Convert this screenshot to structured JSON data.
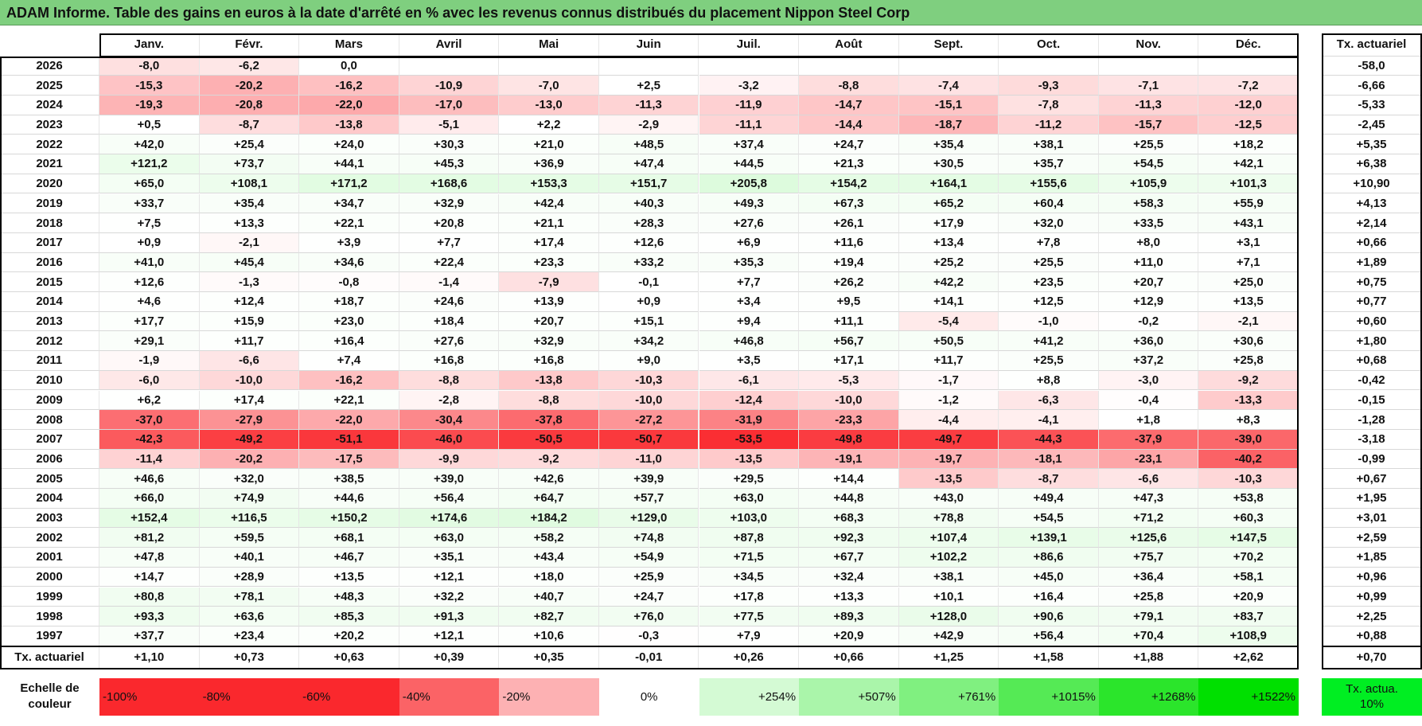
{
  "header": {
    "title": "ADAM Informe. Table des gains en euros à la date d'arrêté en % avec les revenus connus distribués du placement Nippon Steel Corp"
  },
  "table": {
    "columns": [
      "Janv.",
      "Févr.",
      "Mars",
      "Avril",
      "Mai",
      "Juin",
      "Juil.",
      "Août",
      "Sept.",
      "Oct.",
      "Nov.",
      "Déc."
    ],
    "tx_header": "Tx. actuariel",
    "rows": [
      {
        "year": "2026",
        "values": [
          "-8,0",
          "-6,2",
          "0,0"
        ],
        "tx": "-58,0"
      },
      {
        "year": "2025",
        "values": [
          "-15,3",
          "-20,2",
          "-16,2",
          "-10,9",
          "-7,0",
          "+2,5",
          "-3,2",
          "-8,8",
          "-7,4",
          "-9,3",
          "-7,1",
          "-7,2"
        ],
        "tx": "-6,66"
      },
      {
        "year": "2024",
        "values": [
          "-19,3",
          "-20,8",
          "-22,0",
          "-17,0",
          "-13,0",
          "-11,3",
          "-11,9",
          "-14,7",
          "-15,1",
          "-7,8",
          "-11,3",
          "-12,0"
        ],
        "tx": "-5,33"
      },
      {
        "year": "2023",
        "values": [
          "+0,5",
          "-8,7",
          "-13,8",
          "-5,1",
          "+2,2",
          "-2,9",
          "-11,1",
          "-14,4",
          "-18,7",
          "-11,2",
          "-15,7",
          "-12,5"
        ],
        "tx": "-2,45"
      },
      {
        "year": "2022",
        "values": [
          "+42,0",
          "+25,4",
          "+24,0",
          "+30,3",
          "+21,0",
          "+48,5",
          "+37,4",
          "+24,7",
          "+35,4",
          "+38,1",
          "+25,5",
          "+18,2"
        ],
        "tx": "+5,35"
      },
      {
        "year": "2021",
        "values": [
          "+121,2",
          "+73,7",
          "+44,1",
          "+45,3",
          "+36,9",
          "+47,4",
          "+44,5",
          "+21,3",
          "+30,5",
          "+35,7",
          "+54,5",
          "+42,1"
        ],
        "tx": "+6,38"
      },
      {
        "year": "2020",
        "values": [
          "+65,0",
          "+108,1",
          "+171,2",
          "+168,6",
          "+153,3",
          "+151,7",
          "+205,8",
          "+154,2",
          "+164,1",
          "+155,6",
          "+105,9",
          "+101,3"
        ],
        "tx": "+10,90"
      },
      {
        "year": "2019",
        "values": [
          "+33,7",
          "+35,4",
          "+34,7",
          "+32,9",
          "+42,4",
          "+40,3",
          "+49,3",
          "+67,3",
          "+65,2",
          "+60,4",
          "+58,3",
          "+55,9"
        ],
        "tx": "+4,13"
      },
      {
        "year": "2018",
        "values": [
          "+7,5",
          "+13,3",
          "+22,1",
          "+20,8",
          "+21,1",
          "+28,3",
          "+27,6",
          "+26,1",
          "+17,9",
          "+32,0",
          "+33,5",
          "+43,1"
        ],
        "tx": "+2,14"
      },
      {
        "year": "2017",
        "values": [
          "+0,9",
          "-2,1",
          "+3,9",
          "+7,7",
          "+17,4",
          "+12,6",
          "+6,9",
          "+11,6",
          "+13,4",
          "+7,8",
          "+8,0",
          "+3,1"
        ],
        "tx": "+0,66"
      },
      {
        "year": "2016",
        "values": [
          "+41,0",
          "+45,4",
          "+34,6",
          "+22,4",
          "+23,3",
          "+33,2",
          "+35,3",
          "+19,4",
          "+25,2",
          "+25,5",
          "+11,0",
          "+7,1"
        ],
        "tx": "+1,89"
      },
      {
        "year": "2015",
        "values": [
          "+12,6",
          "-1,3",
          "-0,8",
          "-1,4",
          "-7,9",
          "-0,1",
          "+7,7",
          "+26,2",
          "+42,2",
          "+23,5",
          "+20,7",
          "+25,0"
        ],
        "tx": "+0,75"
      },
      {
        "year": "2014",
        "values": [
          "+4,6",
          "+12,4",
          "+18,7",
          "+24,6",
          "+13,9",
          "+0,9",
          "+3,4",
          "+9,5",
          "+14,1",
          "+12,5",
          "+12,9",
          "+13,5"
        ],
        "tx": "+0,77"
      },
      {
        "year": "2013",
        "values": [
          "+17,7",
          "+15,9",
          "+23,0",
          "+18,4",
          "+20,7",
          "+15,1",
          "+9,4",
          "+11,1",
          "-5,4",
          "-1,0",
          "-0,2",
          "-2,1"
        ],
        "tx": "+0,60"
      },
      {
        "year": "2012",
        "values": [
          "+29,1",
          "+11,7",
          "+16,4",
          "+27,6",
          "+32,9",
          "+34,2",
          "+46,8",
          "+56,7",
          "+50,5",
          "+41,2",
          "+36,0",
          "+30,6"
        ],
        "tx": "+1,80"
      },
      {
        "year": "2011",
        "values": [
          "-1,9",
          "-6,6",
          "+7,4",
          "+16,8",
          "+16,8",
          "+9,0",
          "+3,5",
          "+17,1",
          "+11,7",
          "+25,5",
          "+37,2",
          "+25,8"
        ],
        "tx": "+0,68"
      },
      {
        "year": "2010",
        "values": [
          "-6,0",
          "-10,0",
          "-16,2",
          "-8,8",
          "-13,8",
          "-10,3",
          "-6,1",
          "-5,3",
          "-1,7",
          "+8,8",
          "-3,0",
          "-9,2"
        ],
        "tx": "-0,42"
      },
      {
        "year": "2009",
        "values": [
          "+6,2",
          "+17,4",
          "+22,1",
          "-2,8",
          "-8,8",
          "-10,0",
          "-12,4",
          "-10,0",
          "-1,2",
          "-6,3",
          "-0,4",
          "-13,3"
        ],
        "tx": "-0,15"
      },
      {
        "year": "2008",
        "values": [
          "-37,0",
          "-27,9",
          "-22,0",
          "-30,4",
          "-37,8",
          "-27,2",
          "-31,9",
          "-23,3",
          "-4,4",
          "-4,1",
          "+1,8",
          "+8,3"
        ],
        "tx": "-1,28"
      },
      {
        "year": "2007",
        "values": [
          "-42,3",
          "-49,2",
          "-51,1",
          "-46,0",
          "-50,5",
          "-50,7",
          "-53,5",
          "-49,8",
          "-49,7",
          "-44,3",
          "-37,9",
          "-39,0"
        ],
        "tx": "-3,18"
      },
      {
        "year": "2006",
        "values": [
          "-11,4",
          "-20,2",
          "-17,5",
          "-9,9",
          "-9,2",
          "-11,0",
          "-13,5",
          "-19,1",
          "-19,7",
          "-18,1",
          "-23,1",
          "-40,2"
        ],
        "tx": "-0,99"
      },
      {
        "year": "2005",
        "values": [
          "+46,6",
          "+32,0",
          "+38,5",
          "+39,0",
          "+42,6",
          "+39,9",
          "+29,5",
          "+14,4",
          "-13,5",
          "-8,7",
          "-6,6",
          "-10,3"
        ],
        "tx": "+0,67"
      },
      {
        "year": "2004",
        "values": [
          "+66,0",
          "+74,9",
          "+44,6",
          "+56,4",
          "+64,7",
          "+57,7",
          "+63,0",
          "+44,8",
          "+43,0",
          "+49,4",
          "+47,3",
          "+53,8"
        ],
        "tx": "+1,95"
      },
      {
        "year": "2003",
        "values": [
          "+152,4",
          "+116,5",
          "+150,2",
          "+174,6",
          "+184,2",
          "+129,0",
          "+103,0",
          "+68,3",
          "+78,8",
          "+54,5",
          "+71,2",
          "+60,3"
        ],
        "tx": "+3,01"
      },
      {
        "year": "2002",
        "values": [
          "+81,2",
          "+59,5",
          "+68,1",
          "+63,0",
          "+58,2",
          "+74,8",
          "+87,8",
          "+92,3",
          "+107,4",
          "+139,1",
          "+125,6",
          "+147,5"
        ],
        "tx": "+2,59"
      },
      {
        "year": "2001",
        "values": [
          "+47,8",
          "+40,1",
          "+46,7",
          "+35,1",
          "+43,4",
          "+54,9",
          "+71,5",
          "+67,7",
          "+102,2",
          "+86,6",
          "+75,7",
          "+70,2"
        ],
        "tx": "+1,85"
      },
      {
        "year": "2000",
        "values": [
          "+14,7",
          "+28,9",
          "+13,5",
          "+12,1",
          "+18,0",
          "+25,9",
          "+34,5",
          "+32,4",
          "+38,1",
          "+45,0",
          "+36,4",
          "+58,1"
        ],
        "tx": "+0,96"
      },
      {
        "year": "1999",
        "values": [
          "+80,8",
          "+78,1",
          "+48,3",
          "+32,2",
          "+40,7",
          "+24,7",
          "+17,8",
          "+13,3",
          "+10,1",
          "+16,4",
          "+25,8",
          "+20,9"
        ],
        "tx": "+0,99"
      },
      {
        "year": "1998",
        "values": [
          "+93,3",
          "+63,6",
          "+85,3",
          "+91,3",
          "+82,7",
          "+76,0",
          "+77,5",
          "+89,3",
          "+128,0",
          "+90,6",
          "+79,1",
          "+83,7"
        ],
        "tx": "+2,25"
      },
      {
        "year": "1997",
        "values": [
          "+37,7",
          "+23,4",
          "+20,2",
          "+12,1",
          "+10,6",
          "-0,3",
          "+7,9",
          "+20,9",
          "+42,9",
          "+56,4",
          "+70,4",
          "+108,9"
        ],
        "tx": "+0,88"
      }
    ],
    "footer": {
      "label": "Tx. actuariel",
      "values": [
        "+1,10",
        "+0,73",
        "+0,63",
        "+0,39",
        "+0,35",
        "-0,01",
        "+0,26",
        "+0,66",
        "+1,25",
        "+1,58",
        "+1,88",
        "+2,62"
      ],
      "tx": "+0,70"
    }
  },
  "scale": {
    "label": "Echelle de couleur",
    "steps": [
      "-100%",
      "-80%",
      "-60%",
      "-40%",
      "-20%",
      "0%",
      "+254%",
      "+507%",
      "+761%",
      "+1015%",
      "+1268%",
      "+1522%"
    ],
    "tx": "Tx. actua. 10%"
  }
}
